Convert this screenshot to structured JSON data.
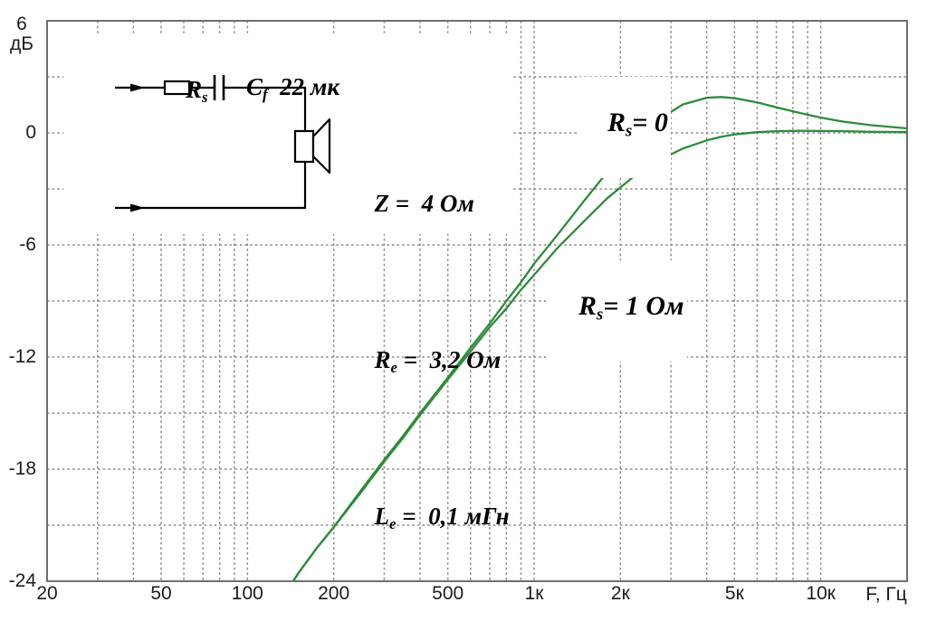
{
  "axis": {
    "y_top_value": "6",
    "y_unit": "дБ",
    "x_unit": "F, Гц"
  },
  "chart_data": {
    "type": "line",
    "title": "",
    "xlabel": "F, Гц",
    "ylabel": "дБ",
    "x_scale": "log",
    "x_range_hz": [
      20,
      20000
    ],
    "y_range_db": [
      -24,
      6
    ],
    "grid_on": true,
    "legend_position": "inline-annotations",
    "x_ticks": [
      {
        "f": 20,
        "label": "20"
      },
      {
        "f": 50,
        "label": "50"
      },
      {
        "f": 100,
        "label": "100"
      },
      {
        "f": 200,
        "label": "200"
      },
      {
        "f": 500,
        "label": "500"
      },
      {
        "f": 1000,
        "label": "1к"
      },
      {
        "f": 2000,
        "label": "2к"
      },
      {
        "f": 5000,
        "label": "5к"
      },
      {
        "f": 10000,
        "label": "10к"
      }
    ],
    "y_ticks": [
      {
        "db": 0,
        "label": "0"
      },
      {
        "db": -6,
        "label": "-6"
      },
      {
        "db": -12,
        "label": "-12"
      },
      {
        "db": -18,
        "label": "-18"
      },
      {
        "db": -24,
        "label": "-24"
      }
    ],
    "y_major_tick_values": [
      6,
      0,
      -6,
      -12,
      -18,
      -24
    ],
    "x_gridlines_hz": [
      30,
      40,
      50,
      60,
      70,
      80,
      90,
      100,
      200,
      300,
      400,
      500,
      600,
      700,
      800,
      900,
      1000,
      2000,
      3000,
      4000,
      5000,
      6000,
      7000,
      8000,
      9000,
      10000
    ],
    "y_gridlines_db": [
      3,
      0,
      -3,
      -6,
      -9,
      -12,
      -15,
      -18,
      -21
    ],
    "series": [
      {
        "name": "Rs = 0",
        "color": "#2e8b3a",
        "points_hz_db": [
          [
            138,
            -24.5
          ],
          [
            150,
            -23.6
          ],
          [
            175,
            -22.2
          ],
          [
            200,
            -21.1
          ],
          [
            250,
            -19.1
          ],
          [
            300,
            -17.5
          ],
          [
            350,
            -16.2
          ],
          [
            400,
            -15.0
          ],
          [
            450,
            -14.0
          ],
          [
            500,
            -13.1
          ],
          [
            600,
            -11.5
          ],
          [
            700,
            -10.2
          ],
          [
            800,
            -9.0
          ],
          [
            900,
            -8.0
          ],
          [
            1000,
            -7.0
          ],
          [
            1200,
            -5.5
          ],
          [
            1500,
            -3.6
          ],
          [
            1800,
            -2.1
          ],
          [
            2200,
            -0.6
          ],
          [
            2700,
            0.68
          ],
          [
            3300,
            1.52
          ],
          [
            4000,
            1.88
          ],
          [
            4500,
            1.92
          ],
          [
            5000,
            1.86
          ],
          [
            6000,
            1.63
          ],
          [
            7000,
            1.37
          ],
          [
            8500,
            1.06
          ],
          [
            10000,
            0.82
          ],
          [
            12000,
            0.6
          ],
          [
            15000,
            0.41
          ],
          [
            20000,
            0.24
          ]
        ]
      },
      {
        "name": "Rs = 1 Ом",
        "color": "#2e8b3a",
        "points_hz_db": [
          [
            138,
            -24.5
          ],
          [
            150,
            -23.6
          ],
          [
            175,
            -22.2
          ],
          [
            200,
            -21.1
          ],
          [
            250,
            -19.2
          ],
          [
            300,
            -17.6
          ],
          [
            350,
            -16.3
          ],
          [
            400,
            -15.1
          ],
          [
            450,
            -14.1
          ],
          [
            500,
            -13.2
          ],
          [
            600,
            -11.7
          ],
          [
            700,
            -10.4
          ],
          [
            800,
            -9.4
          ],
          [
            900,
            -8.4
          ],
          [
            1000,
            -7.6
          ],
          [
            1200,
            -6.2
          ],
          [
            1500,
            -4.7
          ],
          [
            1800,
            -3.5
          ],
          [
            2200,
            -2.4
          ],
          [
            2700,
            -1.5
          ],
          [
            3300,
            -0.84
          ],
          [
            4000,
            -0.4
          ],
          [
            4500,
            -0.21
          ],
          [
            5000,
            -0.08
          ],
          [
            6000,
            0.04
          ],
          [
            7000,
            0.09
          ],
          [
            8500,
            0.11
          ],
          [
            10000,
            0.1
          ],
          [
            12000,
            0.09
          ],
          [
            15000,
            0.06
          ],
          [
            20000,
            0.04
          ]
        ]
      }
    ]
  },
  "curve_labels": {
    "rs0": {
      "base": "R",
      "sub": "s",
      "rest": "= 0"
    },
    "rs1": {
      "base": "R",
      "sub": "s",
      "rest": "= 1 Ом"
    }
  },
  "inset": {
    "resistor_label": {
      "base": "R",
      "sub": "s"
    },
    "capacitor_label": {
      "base": "C",
      "sub": "f",
      "rest": "  22 мк"
    },
    "params": [
      {
        "base": "Z",
        "sub": "",
        "rest": " =  4 Ом"
      },
      {
        "base": "R",
        "sub": "e",
        "rest": " =  3,2 Ом"
      },
      {
        "base": "L",
        "sub": "e",
        "rest": " =  0,1 мГн"
      }
    ]
  },
  "colors": {
    "curve": "#2e8b3a",
    "grid": "#8c8c8c",
    "frame": "#6f6f6f",
    "text": "#1c1c1c",
    "circuit": "#000000"
  }
}
